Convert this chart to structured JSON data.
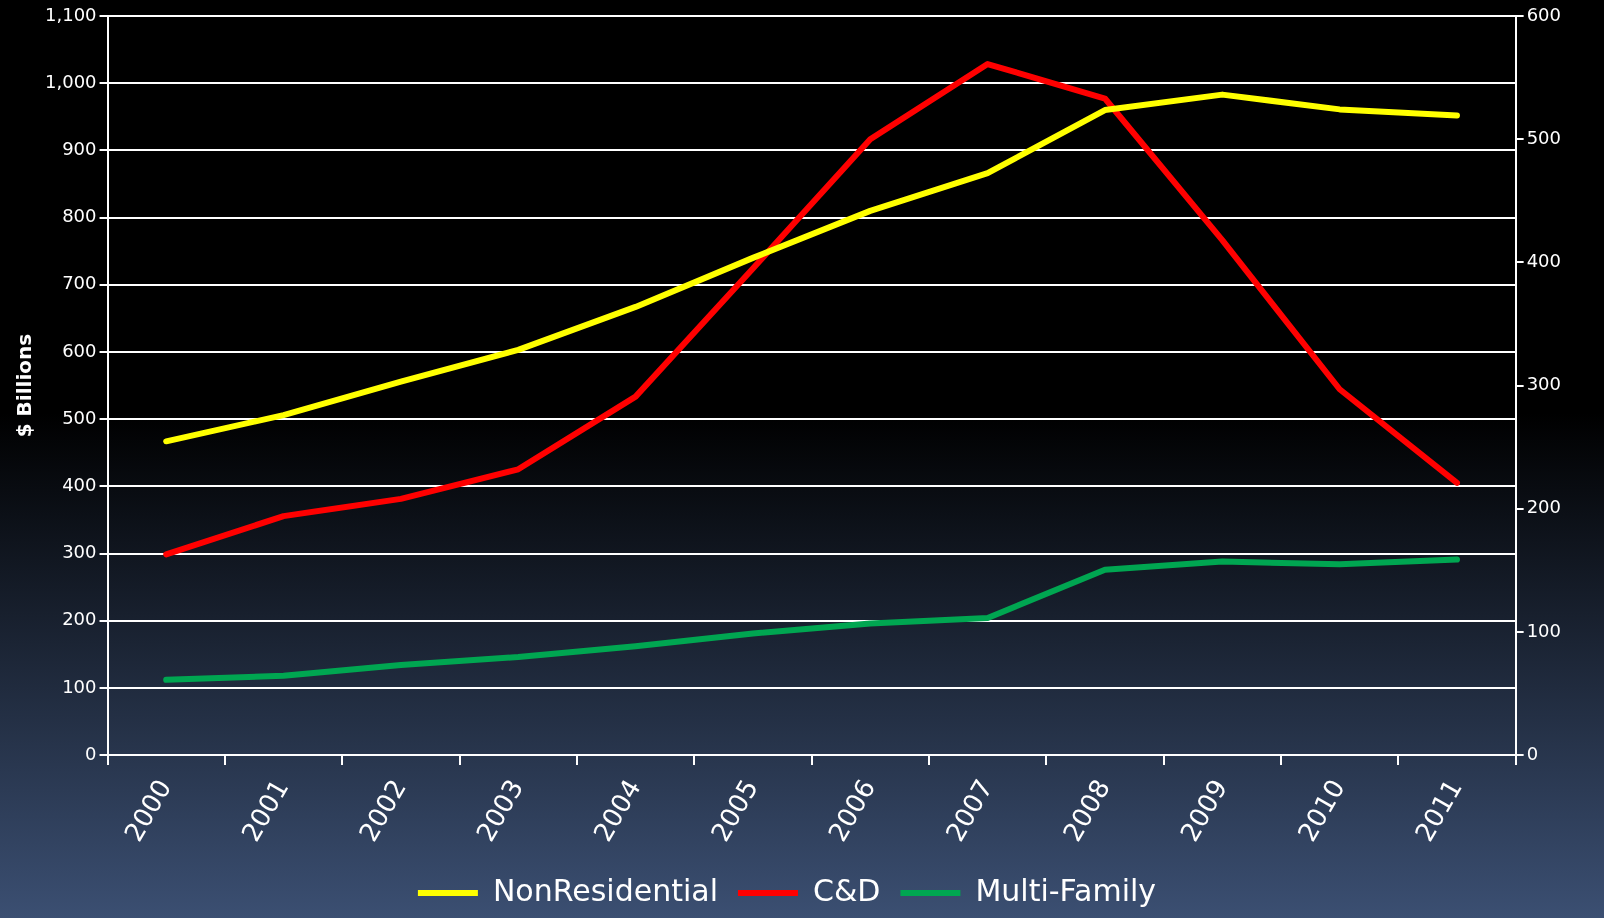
{
  "chart_data": {
    "type": "line",
    "ylabel": "$ Billions",
    "categories": [
      "2000",
      "2001",
      "2002",
      "2003",
      "2004",
      "2005",
      "2006",
      "2007",
      "2008",
      "2009",
      "2010",
      "2011"
    ],
    "series": [
      {
        "name": "NonResidential",
        "color": "#ffff00",
        "values": [
          467,
          506,
          556,
          603,
          667,
          740,
          810,
          866,
          960,
          983,
          961,
          952
        ]
      },
      {
        "name": "C&D",
        "color": "#ff0000",
        "axis": "y2",
        "values": [
          163,
          194,
          208,
          232,
          291,
          395,
          500,
          561,
          533,
          418,
          297,
          221
        ]
      },
      {
        "name": "Multi-Family",
        "color": "#00a651",
        "values": [
          112,
          118,
          134,
          146,
          162,
          181,
          196,
          204,
          276,
          288,
          284,
          291
        ]
      }
    ],
    "ylim": [
      0,
      1100
    ],
    "yticks": [
      0,
      100,
      200,
      300,
      400,
      500,
      600,
      700,
      800,
      900,
      {
        "value": 1000,
        "label": "1,000"
      },
      {
        "value": 1100,
        "label": "1,100"
      }
    ],
    "y2lim": [
      0,
      600
    ],
    "y2ticks": [
      0,
      100,
      200,
      300,
      400,
      500,
      600
    ],
    "grid": "y",
    "legend": "bottom",
    "marker": "none",
    "line_style": "solid"
  }
}
